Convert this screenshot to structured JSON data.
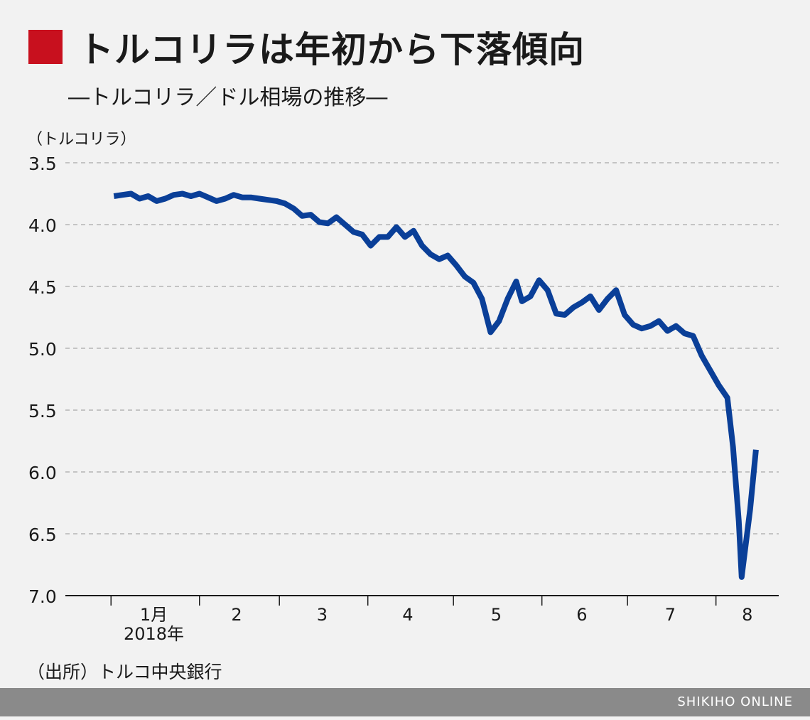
{
  "header": {
    "title": "トルコリラは年初から下落傾向",
    "subtitle": "―トルコリラ／ドル相場の推移―",
    "accent_color": "#c8101e"
  },
  "source_note": "（出所）トルコ中央銀行",
  "footer": {
    "brand": "SHIKIHO ONLINE",
    "bar_color": "#8a8a8a"
  },
  "chart_data": {
    "type": "line",
    "title": "トルコリラは年初から下落傾向",
    "subtitle": "―トルコリラ／ドル相場の推移―",
    "ylabel": "（トルコリラ）",
    "xlabel": "",
    "ylim": [
      3.5,
      7.0
    ],
    "y_inverted": true,
    "yticks": [
      "3.5",
      "4.0",
      "4.5",
      "5.0",
      "5.5",
      "6.0",
      "6.5",
      "7.0"
    ],
    "month_labels": [
      "1月",
      "2",
      "3",
      "4",
      "5",
      "6",
      "7",
      "8"
    ],
    "year_label": "2018年",
    "grid": true,
    "line_color": "#0a3f98",
    "series": [
      {
        "x": [
          "2018-01-02",
          "2018-01-05",
          "2018-01-08",
          "2018-01-11",
          "2018-01-14",
          "2018-01-17",
          "2018-01-20",
          "2018-01-23",
          "2018-01-26",
          "2018-01-29",
          "2018-02-01",
          "2018-02-04",
          "2018-02-07",
          "2018-02-10",
          "2018-02-13",
          "2018-02-16",
          "2018-02-19",
          "2018-02-22",
          "2018-02-25",
          "2018-02-28",
          "2018-03-03",
          "2018-03-06",
          "2018-03-09",
          "2018-03-12",
          "2018-03-15",
          "2018-03-18",
          "2018-03-21",
          "2018-03-24",
          "2018-03-27",
          "2018-03-30",
          "2018-04-02",
          "2018-04-05",
          "2018-04-08",
          "2018-04-11",
          "2018-04-14",
          "2018-04-17",
          "2018-04-20",
          "2018-04-23",
          "2018-04-26",
          "2018-04-29",
          "2018-05-02",
          "2018-05-05",
          "2018-05-08",
          "2018-05-11",
          "2018-05-14",
          "2018-05-17",
          "2018-05-20",
          "2018-05-23",
          "2018-05-25",
          "2018-05-28",
          "2018-05-31",
          "2018-06-03",
          "2018-06-06",
          "2018-06-09",
          "2018-06-12",
          "2018-06-15",
          "2018-06-18",
          "2018-06-21",
          "2018-06-24",
          "2018-06-27",
          "2018-06-30",
          "2018-07-03",
          "2018-07-06",
          "2018-07-09",
          "2018-07-12",
          "2018-07-15",
          "2018-07-18",
          "2018-07-21",
          "2018-07-24",
          "2018-07-27",
          "2018-07-30",
          "2018-08-02",
          "2018-08-05",
          "2018-08-07",
          "2018-08-09",
          "2018-08-10",
          "2018-08-13",
          "2018-08-15"
        ],
        "values": [
          3.77,
          3.76,
          3.75,
          3.79,
          3.77,
          3.81,
          3.79,
          3.76,
          3.75,
          3.77,
          3.75,
          3.78,
          3.81,
          3.79,
          3.76,
          3.78,
          3.78,
          3.79,
          3.8,
          3.81,
          3.83,
          3.87,
          3.93,
          3.92,
          3.98,
          3.99,
          3.94,
          4.0,
          4.06,
          4.08,
          4.17,
          4.1,
          4.1,
          4.02,
          4.1,
          4.05,
          4.17,
          4.24,
          4.28,
          4.25,
          4.33,
          4.42,
          4.47,
          4.6,
          4.87,
          4.78,
          4.6,
          4.46,
          4.62,
          4.58,
          4.45,
          4.53,
          4.72,
          4.73,
          4.67,
          4.63,
          4.58,
          4.69,
          4.6,
          4.53,
          4.73,
          4.81,
          4.84,
          4.82,
          4.78,
          4.86,
          4.82,
          4.88,
          4.9,
          5.06,
          5.18,
          5.3,
          5.4,
          5.8,
          6.4,
          6.85,
          6.3,
          5.82
        ]
      }
    ]
  }
}
